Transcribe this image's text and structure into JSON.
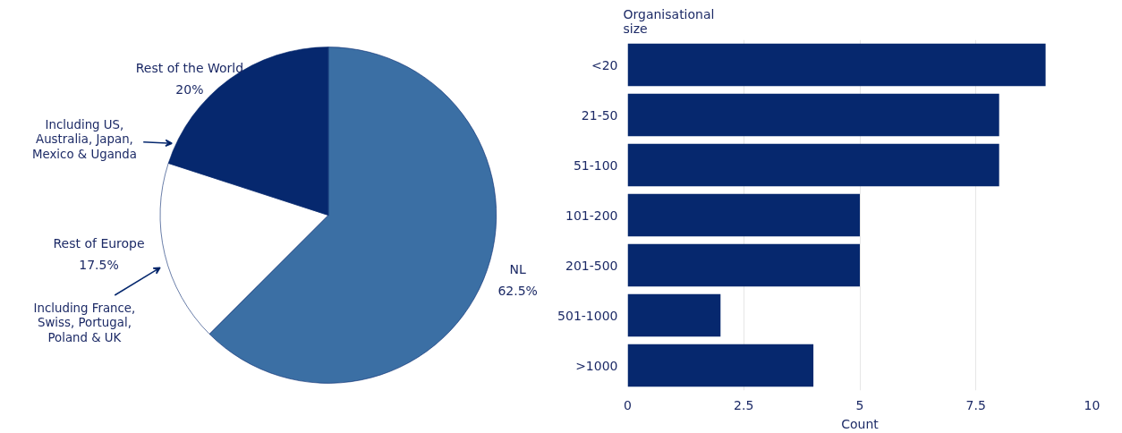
{
  "chart_data": [
    {
      "type": "pie",
      "categories": [
        "NL",
        "Rest of Europe",
        "Rest of the World"
      ],
      "values": [
        62.5,
        17.5,
        20
      ],
      "colors": [
        "#3b6fa4",
        "#ffffff",
        "#06286e"
      ],
      "value_labels": [
        "62.5%",
        "17.5%",
        "20%"
      ],
      "annotations": [
        "Including US,\nAustralia, Japan,\nMexico & Uganda",
        "Including France,\nSwiss, Portugal,\nPoland & UK"
      ]
    },
    {
      "type": "bar",
      "orientation": "horizontal",
      "categories": [
        "<20",
        "21-50",
        "51-100",
        "101-200",
        "201-500",
        "501-1000",
        ">1000"
      ],
      "values": [
        9,
        8,
        8,
        5,
        5,
        2,
        4
      ],
      "color": "#06286e",
      "xlim": [
        0,
        10
      ],
      "xticks": [
        0,
        2.5,
        5,
        7.5,
        10
      ],
      "grid": "x",
      "xlabel": "Count",
      "ylabel": "Organisational\nsize"
    }
  ]
}
